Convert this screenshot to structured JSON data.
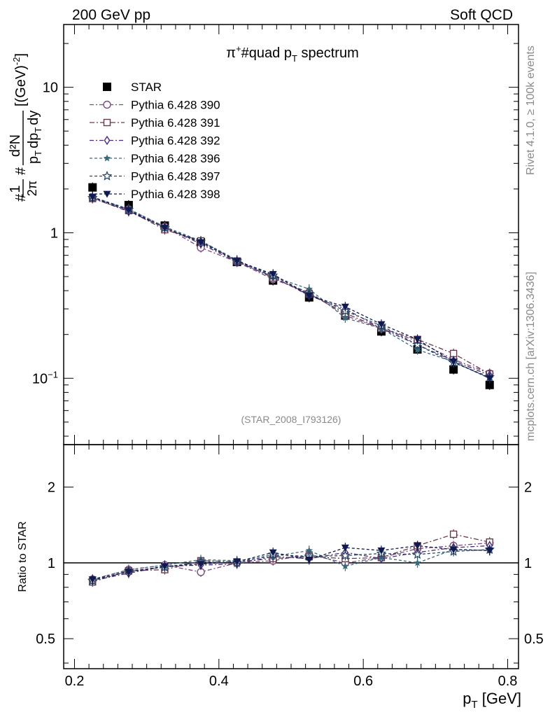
{
  "header": {
    "left": "200 GeV pp",
    "right": "Soft QCD"
  },
  "side": {
    "rivet": "Rivet 4.1.0, ≥ 100k events",
    "mcplots": "mcplots.cern.ch [arXiv:1306.3436]"
  },
  "chart_data": [
    {
      "type": "scatter",
      "title": "π⁺#quad p_T spectrum",
      "title_main": "π",
      "title_sup": "+",
      "title_mid": "#quad p",
      "title_sub": "T",
      "title_tail": " spectrum",
      "ylabel": "#1/2π #d²N/p_T dp_T dy [(GeV)⁻²]",
      "ylabel_parts": {
        "hash": "#",
        "one": "1",
        "two_pi": "2π",
        "d2n": "d²N",
        "denom": "p",
        "denom_sub": "T",
        "dp": "dp",
        "dy": "dy",
        "unit": "[(GeV)",
        "unit_exp": "-2",
        "close": "]"
      },
      "yscale": "log",
      "ylim": [
        0.035,
        27
      ],
      "xlim": [
        0.185,
        0.815
      ],
      "yticks": [
        {
          "value": 10,
          "label": "10"
        },
        {
          "value": 1,
          "label": "1"
        },
        {
          "value": 0.1,
          "label": "10",
          "exp": "−1"
        }
      ],
      "watermark": "(STAR_2008_I793126)",
      "legend_position": "top-left",
      "x": [
        0.225,
        0.275,
        0.325,
        0.375,
        0.425,
        0.475,
        0.525,
        0.575,
        0.625,
        0.675,
        0.725,
        0.775
      ],
      "series": [
        {
          "name": "STAR",
          "marker": "square-filled",
          "color": "#000000",
          "values": [
            2.05,
            1.55,
            1.12,
            0.86,
            0.63,
            0.47,
            0.36,
            0.27,
            0.21,
            0.158,
            0.115,
            0.09
          ]
        },
        {
          "name": "Pythia 6.428 390",
          "marker": "circle-open",
          "color": "#7a4a80",
          "dash": "6,3,2,3",
          "values": [
            1.75,
            1.45,
            1.1,
            0.79,
            0.63,
            0.48,
            0.39,
            0.27,
            0.22,
            0.18,
            0.135,
            0.108
          ]
        },
        {
          "name": "Pythia 6.428 391",
          "marker": "square-open",
          "color": "#6a3a4a",
          "dash": "7,3,2,3",
          "values": [
            1.72,
            1.42,
            1.05,
            0.88,
            0.64,
            0.49,
            0.38,
            0.28,
            0.22,
            0.185,
            0.148,
            0.107
          ]
        },
        {
          "name": "Pythia 6.428 392",
          "marker": "diamond-open",
          "color": "#4a2a7a",
          "dash": "6,3,2,3",
          "values": [
            1.73,
            1.4,
            1.09,
            0.84,
            0.63,
            0.5,
            0.37,
            0.3,
            0.22,
            0.17,
            0.132,
            0.105
          ]
        },
        {
          "name": "Pythia 6.428 396",
          "marker": "star-filled",
          "color": "#3a6a7a",
          "dash": "4,3",
          "values": [
            1.76,
            1.46,
            1.1,
            0.88,
            0.65,
            0.5,
            0.41,
            0.26,
            0.22,
            0.157,
            0.13,
            0.1
          ]
        },
        {
          "name": "Pythia 6.428 397",
          "marker": "star-open",
          "color": "#2a4a6a",
          "dash": "4,3",
          "values": [
            1.74,
            1.44,
            1.08,
            0.87,
            0.64,
            0.51,
            0.38,
            0.29,
            0.23,
            0.17,
            0.128,
            0.102
          ]
        },
        {
          "name": "Pythia 6.428 398",
          "marker": "triangle-down-filled",
          "color": "#101a50",
          "dash": "4,3",
          "values": [
            1.76,
            1.43,
            1.08,
            0.86,
            0.64,
            0.52,
            0.37,
            0.31,
            0.235,
            0.185,
            0.13,
            0.1
          ]
        }
      ]
    },
    {
      "type": "scatter",
      "title": "",
      "ylabel": "Ratio to STAR",
      "xlabel": "p_T [GeV]",
      "xlabel_main": "p",
      "xlabel_sub": "T",
      "xlabel_tail": " [GeV]",
      "yscale": "log",
      "ylim": [
        0.38,
        2.95
      ],
      "xlim": [
        0.185,
        0.815
      ],
      "xticks": [
        {
          "value": 0.2,
          "label": "0.2"
        },
        {
          "value": 0.4,
          "label": "0.4"
        },
        {
          "value": 0.6,
          "label": "0.6"
        },
        {
          "value": 0.8,
          "label": "0.8"
        }
      ],
      "yticks": [
        {
          "value": 2,
          "label": "2"
        },
        {
          "value": 1,
          "label": "1"
        },
        {
          "value": 0.5,
          "label": "0.5"
        }
      ],
      "reference_line": 1,
      "x": [
        0.225,
        0.275,
        0.325,
        0.375,
        0.425,
        0.475,
        0.525,
        0.575,
        0.625,
        0.675,
        0.725,
        0.775
      ],
      "series": [
        {
          "name": "Pythia 6.428 390",
          "marker": "circle-open",
          "color": "#7a4a80",
          "dash": "6,3,2,3",
          "values": [
            0.86,
            0.94,
            0.98,
            0.92,
            1.0,
            1.02,
            1.08,
            1.0,
            1.05,
            1.14,
            1.17,
            1.2
          ]
        },
        {
          "name": "Pythia 6.428 391",
          "marker": "square-open",
          "color": "#6a3a4a",
          "dash": "7,3,2,3",
          "values": [
            0.84,
            0.93,
            0.94,
            1.02,
            1.01,
            1.04,
            1.06,
            1.04,
            1.05,
            1.17,
            1.3,
            1.21
          ]
        },
        {
          "name": "Pythia 6.428 392",
          "marker": "diamond-open",
          "color": "#4a2a7a",
          "dash": "6,3,2,3",
          "values": [
            0.85,
            0.91,
            0.97,
            0.98,
            0.99,
            1.06,
            1.04,
            1.1,
            1.04,
            1.1,
            1.15,
            1.17
          ]
        },
        {
          "name": "Pythia 6.428 396",
          "marker": "star-filled",
          "color": "#3a6a7a",
          "dash": "4,3",
          "values": [
            0.86,
            0.94,
            0.98,
            1.03,
            1.02,
            1.06,
            1.12,
            0.97,
            1.05,
            1.0,
            1.13,
            1.12
          ]
        },
        {
          "name": "Pythia 6.428 397",
          "marker": "star-open",
          "color": "#2a4a6a",
          "dash": "4,3",
          "values": [
            0.85,
            0.93,
            0.96,
            1.01,
            1.0,
            1.08,
            1.06,
            1.07,
            1.09,
            1.08,
            1.11,
            1.13
          ]
        },
        {
          "name": "Pythia 6.428 398",
          "marker": "triangle-down-filled",
          "color": "#101a50",
          "dash": "4,3",
          "values": [
            0.86,
            0.92,
            0.97,
            0.99,
            1.01,
            1.1,
            1.03,
            1.15,
            1.12,
            1.17,
            1.13,
            1.12
          ]
        }
      ]
    }
  ]
}
